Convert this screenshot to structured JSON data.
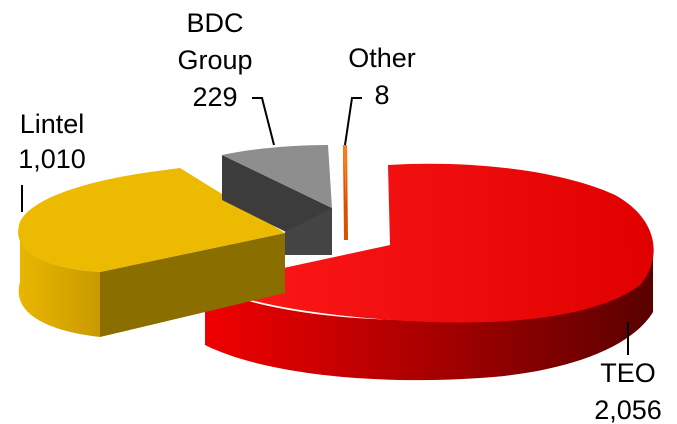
{
  "chart_data": {
    "type": "pie",
    "style": "3d-exploded",
    "slices": [
      {
        "name": "TEO",
        "value": 2056,
        "value_label": "2,056",
        "color": "#e60000"
      },
      {
        "name": "Lintel",
        "value": 1010,
        "value_label": "1,010",
        "color": "#e9b600"
      },
      {
        "name": "BDC Group",
        "value": 229,
        "value_label": "229",
        "color": "#8c8c8c"
      },
      {
        "name": "Other",
        "value": 8,
        "value_label": "8",
        "color": "#ff6a00"
      }
    ],
    "legend": "none"
  }
}
